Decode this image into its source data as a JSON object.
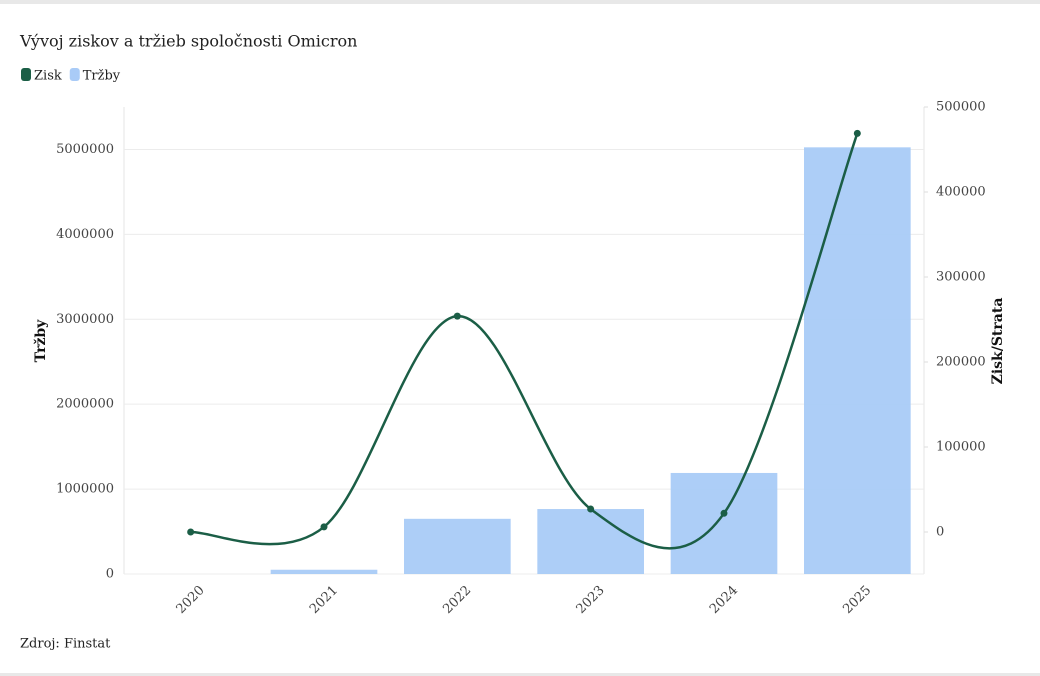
{
  "chart_data": {
    "type": "combo",
    "title": "Vývoj ziskov a tržieb spoločnosti Omicron",
    "categories": [
      "2020",
      "2021",
      "2022",
      "2023",
      "2024",
      "2025"
    ],
    "series": [
      {
        "name": "Zisk",
        "type": "line",
        "axis": "y2",
        "color": "#1b5e46",
        "values": [
          0,
          6000,
          254000,
          27000,
          22000,
          469000
        ]
      },
      {
        "name": "Tržby",
        "type": "bar",
        "color": "#a9cbf7",
        "values": [
          0,
          50000,
          650000,
          765000,
          1190000,
          5025000
        ]
      }
    ],
    "ylabel": "Tržby",
    "y2label": "Zisk/Strata",
    "ylim": [
      0,
      5500000
    ],
    "yticks": [
      0,
      1000000,
      2000000,
      3000000,
      4000000,
      5000000
    ],
    "y2lim": [
      -49400,
      500000
    ],
    "y2ticks": [
      0,
      100000,
      200000,
      300000,
      400000,
      500000
    ],
    "grid": true,
    "source": "Zdroj: Finstat"
  }
}
